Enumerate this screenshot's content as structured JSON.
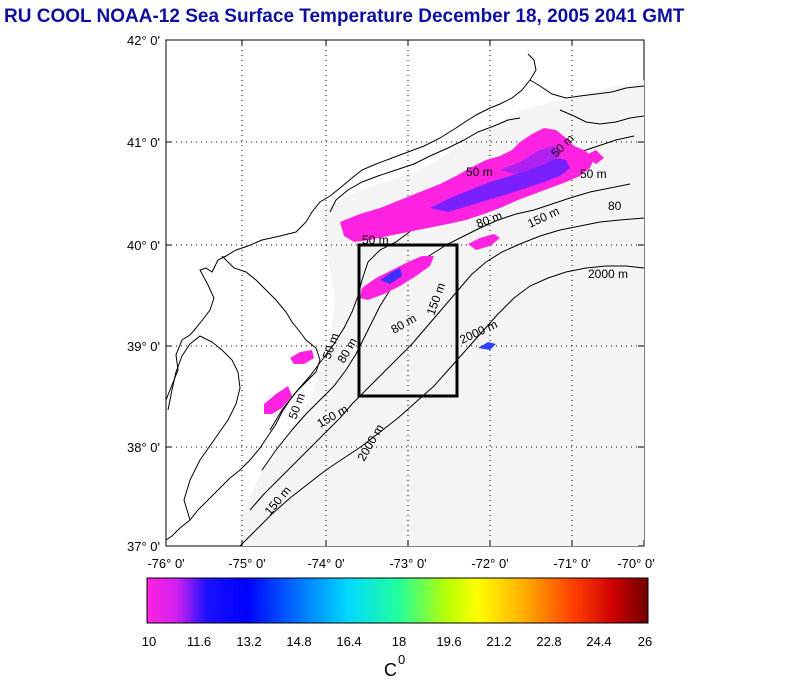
{
  "title": "RU COOL  NOAA-12 Sea Surface Temperature December 18, 2005 2041 GMT",
  "map": {
    "lat_labels": [
      "42° 0'",
      "41° 0'",
      "40° 0'",
      "39° 0'",
      "38° 0'",
      "37° 0'"
    ],
    "lon_labels": [
      "-76° 0'",
      "-75° 0'",
      "-74° 0'",
      "-73° 0'",
      "-72° 0'",
      "-71° 0'",
      "-70° 0'"
    ],
    "lat_range": [
      37,
      42
    ],
    "lon_range": [
      -76,
      -70
    ],
    "isobath_labels": {
      "m50_a": "50 m",
      "m50_b": "50 m",
      "m50_c": "50 m",
      "m50_d": "50 m",
      "m50_e": "50 m",
      "m50_f": "50 m",
      "m80_a": "80 m",
      "m80_b": "80 m",
      "m80_c": "80 m",
      "m80_d": "80",
      "m150_a": "150 m",
      "m150_b": "150 m",
      "m150_c": "150 m",
      "m150_d": "150 m",
      "m2000_a": "2000 m",
      "m2000_b": "2000 m",
      "m2000_c": "2000 m"
    },
    "study_box": {
      "lon_min": -73.5,
      "lon_max": -72.2,
      "lat_min": 38.5,
      "lat_max": 40.0
    }
  },
  "colorbar": {
    "ticks": [
      "10",
      "11.6",
      "13.2",
      "14.8",
      "16.4",
      "18",
      "19.6",
      "21.2",
      "22.8",
      "24.4",
      "26"
    ],
    "range": [
      10,
      26
    ],
    "unit": "C",
    "unit_sup": "0",
    "colors": [
      "#ff22e0",
      "#7a20ff",
      "#0000ff",
      "#0060ff",
      "#00b8ff",
      "#00e8d0",
      "#30ff60",
      "#c8ff00",
      "#ffff00",
      "#ffc000",
      "#ff7000",
      "#ff2000",
      "#d00000",
      "#800000"
    ]
  }
}
